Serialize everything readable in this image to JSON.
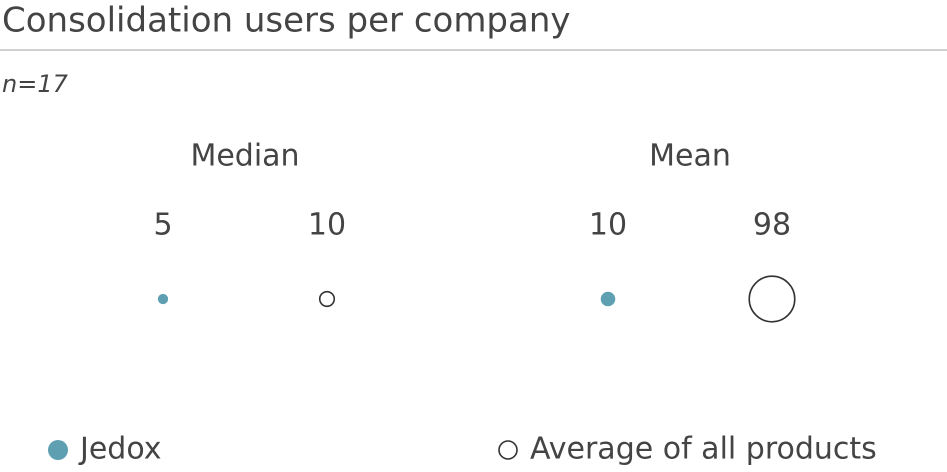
{
  "chart_data": {
    "type": "bubble",
    "title": "Consolidation users per company",
    "subtitle": "n=17",
    "categories": [
      "Median",
      "Mean"
    ],
    "series": [
      {
        "name": "Jedox",
        "color": "#5f9fb2",
        "filled": true,
        "values": [
          5,
          10
        ]
      },
      {
        "name": "Average of all products",
        "color": "#333333",
        "filled": false,
        "values": [
          10,
          98
        ]
      }
    ]
  }
}
